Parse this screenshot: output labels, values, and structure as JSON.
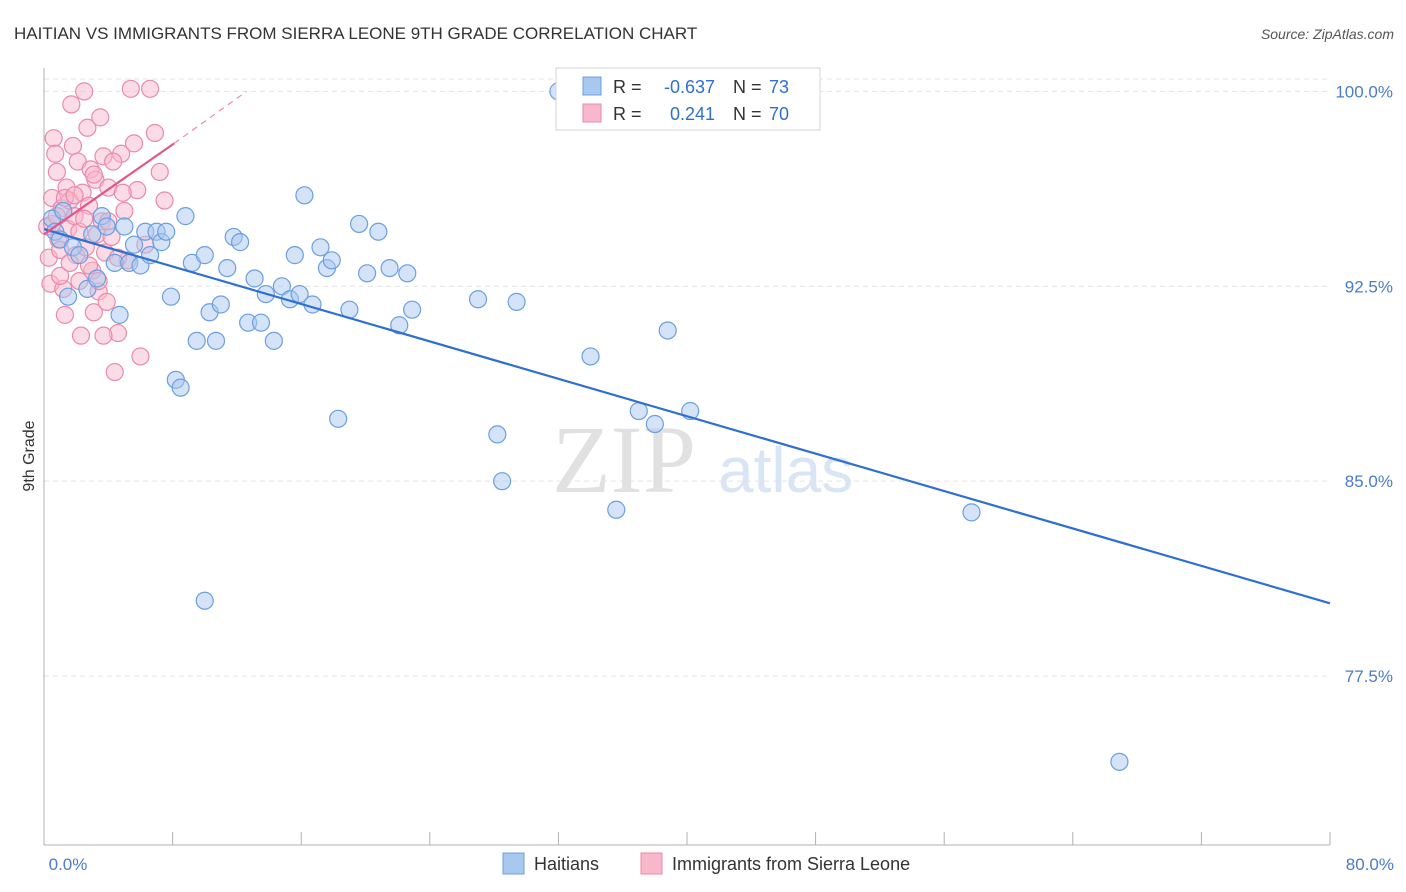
{
  "chart_data": {
    "type": "scatter",
    "title": "HAITIAN VS IMMIGRANTS FROM SIERRA LEONE 9TH GRADE CORRELATION CHART",
    "source": "Source: ZipAtlas.com",
    "ylabel": "9th Grade",
    "xlim": [
      0,
      80
    ],
    "ylim": [
      71.0,
      100.9
    ],
    "x_tick_labels": [
      "0.0%",
      "80.0%"
    ],
    "y_ticks": [
      100.0,
      92.5,
      85.0,
      77.5
    ],
    "y_tick_labels": [
      "100.0%",
      "92.5%",
      "85.0%",
      "77.5%"
    ],
    "x_minor_ticks": [
      8,
      16,
      24,
      32,
      40,
      48,
      56,
      64,
      72,
      80
    ],
    "legend": {
      "haitians": "Haitians",
      "sierra_leone": "Immigrants from Sierra Leone"
    },
    "stats": {
      "r_label": "R =",
      "n_label": "N =",
      "haitians": {
        "r": "-0.637",
        "n": "73"
      },
      "sierra_leone": {
        "r": "0.241",
        "n": "70"
      }
    },
    "colors": {
      "blue_fill": "#a9c8f0",
      "blue_stroke": "#6b9fe0",
      "blue_line": "#2f6fd1",
      "pink_fill": "#f7b8cc",
      "pink_stroke": "#e98aaa",
      "pink_line": "#e0588a"
    },
    "series": [
      {
        "name": "Haitians",
        "trend": {
          "x": [
            0,
            80
          ],
          "y": [
            94.7,
            80.3
          ]
        },
        "points": [
          [
            0.5,
            95.1
          ],
          [
            0.7,
            94.6
          ],
          [
            1.0,
            94.3
          ],
          [
            1.2,
            95.4
          ],
          [
            1.5,
            92.1
          ],
          [
            1.8,
            94.0
          ],
          [
            2.2,
            93.7
          ],
          [
            2.7,
            92.4
          ],
          [
            3.0,
            94.5
          ],
          [
            3.3,
            92.8
          ],
          [
            3.6,
            95.2
          ],
          [
            3.9,
            94.8
          ],
          [
            4.4,
            93.4
          ],
          [
            4.7,
            91.4
          ],
          [
            5.0,
            94.8
          ],
          [
            5.3,
            93.4
          ],
          [
            5.6,
            94.1
          ],
          [
            6.0,
            93.3
          ],
          [
            6.3,
            94.6
          ],
          [
            6.6,
            93.7
          ],
          [
            7.0,
            94.6
          ],
          [
            7.3,
            94.2
          ],
          [
            7.6,
            94.6
          ],
          [
            7.9,
            92.1
          ],
          [
            8.2,
            88.9
          ],
          [
            8.5,
            88.6
          ],
          [
            8.8,
            95.2
          ],
          [
            9.2,
            93.4
          ],
          [
            9.5,
            90.4
          ],
          [
            10.0,
            93.7
          ],
          [
            10.3,
            91.5
          ],
          [
            10.7,
            90.4
          ],
          [
            11.0,
            91.8
          ],
          [
            11.4,
            93.2
          ],
          [
            11.8,
            94.4
          ],
          [
            12.2,
            94.2
          ],
          [
            12.7,
            91.1
          ],
          [
            13.1,
            92.8
          ],
          [
            13.5,
            91.1
          ],
          [
            13.8,
            92.2
          ],
          [
            14.3,
            90.4
          ],
          [
            14.8,
            92.5
          ],
          [
            15.3,
            92.0
          ],
          [
            15.6,
            93.7
          ],
          [
            15.9,
            92.2
          ],
          [
            16.2,
            96.0
          ],
          [
            16.7,
            91.8
          ],
          [
            17.2,
            94.0
          ],
          [
            17.6,
            93.2
          ],
          [
            17.9,
            93.5
          ],
          [
            18.3,
            87.4
          ],
          [
            19.0,
            91.6
          ],
          [
            19.6,
            94.9
          ],
          [
            20.1,
            93.0
          ],
          [
            20.8,
            94.6
          ],
          [
            21.5,
            93.2
          ],
          [
            22.1,
            91.0
          ],
          [
            22.6,
            93.0
          ],
          [
            22.9,
            91.6
          ],
          [
            10.0,
            80.4
          ],
          [
            27.0,
            92.0
          ],
          [
            28.2,
            86.8
          ],
          [
            28.5,
            85.0
          ],
          [
            29.4,
            91.9
          ],
          [
            34.0,
            89.8
          ],
          [
            35.6,
            83.9
          ],
          [
            37.0,
            87.7
          ],
          [
            38.0,
            87.2
          ],
          [
            38.8,
            90.8
          ],
          [
            40.2,
            87.7
          ],
          [
            57.7,
            83.8
          ],
          [
            66.9,
            74.2
          ],
          [
            32.0,
            100.0
          ]
        ]
      },
      {
        "name": "Immigrants from Sierra Leone",
        "trend": {
          "x": [
            0,
            8.1
          ],
          "y": [
            94.5,
            98.0
          ]
        },
        "trend_ext": {
          "x": [
            8.1,
            12.6
          ],
          "y": [
            98.0,
            100.0
          ]
        },
        "points": [
          [
            0.2,
            94.8
          ],
          [
            0.3,
            93.6
          ],
          [
            0.4,
            92.6
          ],
          [
            0.5,
            95.9
          ],
          [
            0.6,
            98.2
          ],
          [
            0.7,
            97.6
          ],
          [
            0.8,
            96.9
          ],
          [
            0.9,
            94.3
          ],
          [
            1.0,
            93.9
          ],
          [
            1.1,
            95.5
          ],
          [
            1.2,
            92.4
          ],
          [
            1.3,
            91.4
          ],
          [
            1.4,
            96.3
          ],
          [
            1.5,
            94.7
          ],
          [
            1.6,
            95.8
          ],
          [
            1.7,
            99.5
          ],
          [
            1.8,
            97.9
          ],
          [
            1.9,
            95.2
          ],
          [
            2.0,
            93.7
          ],
          [
            2.1,
            97.3
          ],
          [
            2.2,
            92.7
          ],
          [
            2.3,
            90.6
          ],
          [
            2.4,
            96.1
          ],
          [
            2.5,
            100.0
          ],
          [
            2.6,
            94.0
          ],
          [
            2.7,
            98.6
          ],
          [
            2.8,
            95.6
          ],
          [
            2.9,
            97.0
          ],
          [
            3.0,
            93.1
          ],
          [
            3.1,
            91.5
          ],
          [
            3.2,
            96.6
          ],
          [
            3.3,
            94.5
          ],
          [
            3.4,
            92.3
          ],
          [
            3.5,
            99.0
          ],
          [
            3.6,
            95.0
          ],
          [
            3.7,
            97.5
          ],
          [
            3.8,
            93.8
          ],
          [
            3.9,
            91.9
          ],
          [
            4.0,
            96.3
          ],
          [
            4.2,
            94.4
          ],
          [
            4.4,
            89.2
          ],
          [
            4.6,
            90.7
          ],
          [
            4.8,
            97.6
          ],
          [
            5.0,
            95.4
          ],
          [
            5.2,
            93.5
          ],
          [
            5.4,
            100.1
          ],
          [
            5.6,
            98.0
          ],
          [
            5.8,
            96.2
          ],
          [
            6.0,
            89.8
          ],
          [
            6.3,
            94.1
          ],
          [
            6.6,
            100.1
          ],
          [
            6.9,
            98.4
          ],
          [
            7.2,
            96.9
          ],
          [
            7.5,
            95.8
          ],
          [
            0.5,
            94.9
          ],
          [
            0.8,
            95.2
          ],
          [
            1.0,
            92.9
          ],
          [
            1.3,
            95.9
          ],
          [
            1.6,
            93.4
          ],
          [
            1.9,
            96.0
          ],
          [
            2.2,
            94.6
          ],
          [
            2.5,
            95.1
          ],
          [
            2.8,
            93.3
          ],
          [
            3.1,
            96.8
          ],
          [
            3.4,
            92.7
          ],
          [
            3.7,
            90.6
          ],
          [
            4.0,
            95.0
          ],
          [
            4.3,
            97.3
          ],
          [
            4.6,
            93.6
          ],
          [
            4.9,
            96.1
          ]
        ]
      }
    ]
  }
}
